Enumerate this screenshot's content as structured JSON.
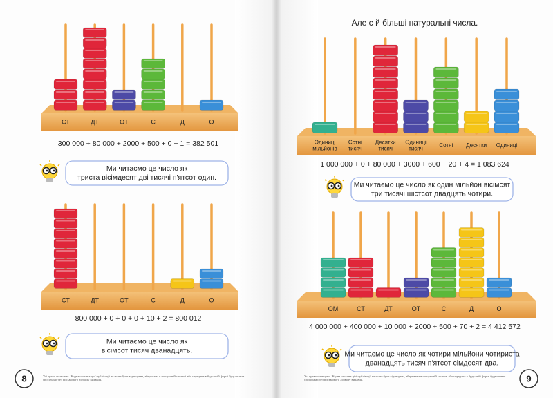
{
  "left_page": {
    "abacuses": [
      {
        "labels": [
          [
            "СТ"
          ],
          [
            "ДТ"
          ],
          [
            "ОТ"
          ],
          [
            "С"
          ],
          [
            "Д"
          ],
          [
            "О"
          ]
        ],
        "beads": [
          3,
          8,
          2,
          5,
          0,
          1
        ],
        "colors": [
          "#e0263a",
          "#e0263a",
          "#4d4aa6",
          "#5cb83a",
          "#f5c518",
          "#3a8fd8"
        ],
        "equation": "300 000 + 80 000 + 2000 + 500 + 0 + 1 = 382 501",
        "reading": [
          "Ми читаємо це число як",
          "триста вісімдесят дві тисячі п'ятсот один."
        ]
      },
      {
        "labels": [
          [
            "СТ"
          ],
          [
            "ДТ"
          ],
          [
            "ОТ"
          ],
          [
            "С"
          ],
          [
            "Д"
          ],
          [
            "О"
          ]
        ],
        "beads": [
          8,
          0,
          0,
          0,
          1,
          2
        ],
        "colors": [
          "#e0263a",
          "#e0263a",
          "#4d4aa6",
          "#5cb83a",
          "#f5c518",
          "#3a8fd8"
        ],
        "equation": "800 000 + 0 + 0 + 0 + 10 + 2 = 800 012",
        "reading": [
          "Ми читаємо це число як",
          "вісімсот тисяч дванадцять."
        ]
      }
    ],
    "page_number": "8",
    "footer": "Усі права захищено. Жодна частина цієї публікації не може бути відтворена, збережена в пошуковій системі або передана в будь-якій формі будь-якими способами без письмового дозволу видавця."
  },
  "right_page": {
    "title": "Але є й більші натуральні числа.",
    "abacuses": [
      {
        "labels": [
          [
            "Одиниці",
            "мільйонів"
          ],
          [
            "Сотні",
            "тисяч"
          ],
          [
            "Десятки",
            "тисяч"
          ],
          [
            "Одиниці",
            "тисяч"
          ],
          [
            "Сотні"
          ],
          [
            "Десятки"
          ],
          [
            "Одиниці"
          ]
        ],
        "beads": [
          1,
          0,
          8,
          3,
          6,
          2,
          4
        ],
        "colors": [
          "#33b08f",
          "#e0263a",
          "#e0263a",
          "#4d4aa6",
          "#5cb83a",
          "#f5c518",
          "#3a8fd8"
        ],
        "equation": "1 000 000 + 0 + 80 000 + 3000 + 600 + 20 + 4 = 1 083 624",
        "reading": [
          "Ми читаємо це число як один мільйон вісімсят",
          "три тисячі шістсот двадцять чотири."
        ]
      },
      {
        "labels": [
          [
            "ОМ"
          ],
          [
            "СТ"
          ],
          [
            "ДТ"
          ],
          [
            "ОТ"
          ],
          [
            "С"
          ],
          [
            "Д"
          ],
          [
            "О"
          ]
        ],
        "beads": [
          4,
          4,
          1,
          2,
          5,
          7,
          2
        ],
        "colors": [
          "#33b08f",
          "#e0263a",
          "#e0263a",
          "#4d4aa6",
          "#5cb83a",
          "#f5c518",
          "#3a8fd8"
        ],
        "equation": "4 000 000 + 400 000 + 10 000 + 2000 + 500 + 70 + 2 = 4 412 572",
        "reading": [
          "Ми читаємо це число як чотири мільйони чотириста",
          "дванадцять тисяч п'ятсот сімдесят два."
        ]
      }
    ],
    "page_number": "9",
    "footer": "Усі права захищено. Жодна частина цієї публікації не може бути відтворена, збережена в пошуковій системі або передана в будь-якій формі будь-якими способами без письмового дозволу видавця."
  }
}
